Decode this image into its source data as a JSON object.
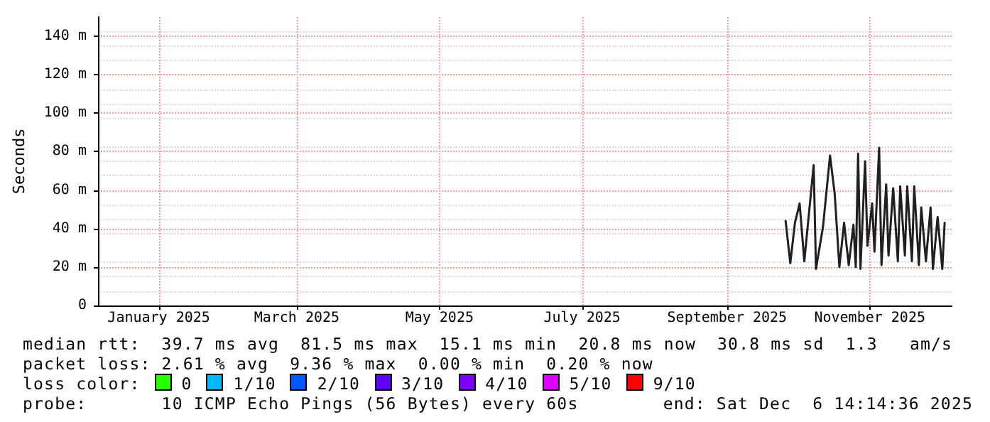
{
  "chart_data": {
    "type": "line",
    "ylabel": "Seconds",
    "xlim": [
      "2024-12-06",
      "2025-12-06"
    ],
    "xticks": [
      {
        "value": "2025-01-01",
        "label": "January 2025"
      },
      {
        "value": "2025-03-01",
        "label": "March 2025"
      },
      {
        "value": "2025-05-01",
        "label": "May 2025"
      },
      {
        "value": "2025-07-01",
        "label": "July 2025"
      },
      {
        "value": "2025-09-01",
        "label": "September 2025"
      },
      {
        "value": "2025-11-01",
        "label": "November 2025"
      }
    ],
    "ylim": [
      0,
      150
    ],
    "yticks": [
      {
        "value": 0,
        "label": "0"
      },
      {
        "value": 20,
        "label": "20 m"
      },
      {
        "value": 40,
        "label": "40 m"
      },
      {
        "value": 60,
        "label": "60 m"
      },
      {
        "value": 80,
        "label": "80 m"
      },
      {
        "value": 100,
        "label": "100 m"
      },
      {
        "value": 120,
        "label": "120 m"
      },
      {
        "value": 140,
        "label": "140 m"
      }
    ],
    "grid": true,
    "marker": "none",
    "line_style": "solid",
    "series": [
      {
        "color": "#202020",
        "x": [
          "2025-09-26",
          "2025-09-28",
          "2025-09-30",
          "2025-10-02",
          "2025-10-04",
          "2025-10-08",
          "2025-10-09",
          "2025-10-12",
          "2025-10-15",
          "2025-10-17",
          "2025-10-19",
          "2025-10-21",
          "2025-10-23",
          "2025-10-25",
          "2025-10-26",
          "2025-10-27",
          "2025-10-28",
          "2025-10-30",
          "2025-10-31",
          "2025-11-02",
          "2025-11-03",
          "2025-11-05",
          "2025-11-06",
          "2025-11-08",
          "2025-11-09",
          "2025-11-11",
          "2025-11-13",
          "2025-11-14",
          "2025-11-16",
          "2025-11-17",
          "2025-11-19",
          "2025-11-20",
          "2025-11-22",
          "2025-11-23",
          "2025-11-25",
          "2025-11-27",
          "2025-11-28",
          "2025-11-30",
          "2025-12-02",
          "2025-12-03"
        ],
        "values": [
          44,
          22,
          43,
          53,
          23,
          73,
          19,
          41,
          78,
          58,
          20,
          43,
          21,
          42,
          20,
          79,
          19,
          75,
          31,
          53,
          28,
          82,
          21,
          63,
          26,
          61,
          23,
          62,
          26,
          62,
          23,
          62,
          21,
          51,
          23,
          51,
          19,
          46,
          19,
          43
        ]
      }
    ],
    "annotations": [
      "median rtt:  39.7 ms avg  81.5 ms max  15.1 ms min  20.8 ms now  30.8 ms sd  1.3   am/s",
      "packet loss: 2.61 % avg  9.36 % max  0.00 % min  0.20 % now",
      "loss color:",
      "0",
      "1/10",
      "2/10",
      "3/10",
      "4/10",
      "5/10",
      "9/10",
      "probe:       10 ICMP Echo Pings (56 Bytes) every 60s",
      "end: Sat Dec  6 14:14:36 2025"
    ]
  }
}
